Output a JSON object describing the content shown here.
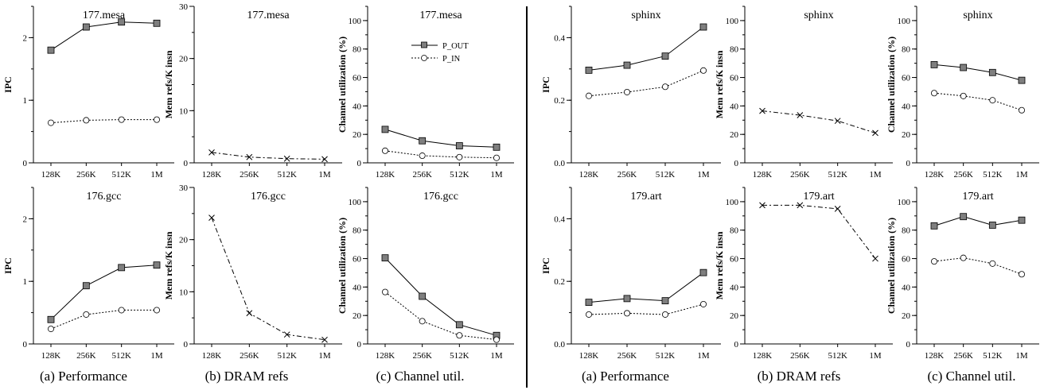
{
  "captions": [
    "(a) Performance",
    "(b) DRAM refs",
    "(c) Channel util.",
    "(a) Performance",
    "(b) DRAM refs",
    "(c) Channel util."
  ],
  "legend": {
    "p_out": "P_OUT",
    "p_in": "P_IN"
  },
  "chart_data": [
    {
      "type": "line",
      "title": "177.mesa",
      "ylabel": "IPC",
      "ylim": [
        0,
        2.5
      ],
      "yticks": [
        "0",
        "1",
        "2"
      ],
      "categories": [
        "128K",
        "256K",
        "512K",
        "1M"
      ],
      "series": [
        {
          "name": "P_OUT",
          "values": [
            1.8,
            2.17,
            2.25,
            2.23
          ]
        },
        {
          "name": "P_IN",
          "values": [
            0.64,
            0.68,
            0.69,
            0.69
          ]
        }
      ]
    },
    {
      "type": "line",
      "title": "177.mesa",
      "ylabel": "Mem refs/K insn",
      "ylim": [
        0,
        30
      ],
      "yticks": [
        "0",
        "10",
        "20",
        "30"
      ],
      "categories": [
        "128K",
        "256K",
        "512K",
        "1M"
      ],
      "series": [
        {
          "values": [
            2.0,
            1.1,
            0.8,
            0.7
          ]
        }
      ]
    },
    {
      "type": "line",
      "title": "177.mesa",
      "ylabel": "Channel utilization (%)",
      "ylim": [
        0,
        110
      ],
      "yticks": [
        "0",
        "20",
        "40",
        "60",
        "80",
        "100"
      ],
      "categories": [
        "128K",
        "256K",
        "512K",
        "1M"
      ],
      "series": [
        {
          "name": "P_OUT",
          "values": [
            23.5,
            15.5,
            12.0,
            11.0
          ]
        },
        {
          "name": "P_IN",
          "values": [
            8.5,
            5.0,
            4.0,
            3.5
          ]
        }
      ]
    },
    {
      "type": "line",
      "title": "sphinx",
      "ylabel": "IPC",
      "ylim": [
        0,
        0.5
      ],
      "yticks": [
        "0.0",
        "0.2",
        "0.4"
      ],
      "categories": [
        "128K",
        "256K",
        "512K",
        "1M"
      ],
      "series": [
        {
          "name": "P_OUT",
          "values": [
            0.296,
            0.312,
            0.341,
            0.434
          ]
        },
        {
          "name": "P_IN",
          "values": [
            0.214,
            0.226,
            0.243,
            0.295
          ]
        }
      ]
    },
    {
      "type": "line",
      "title": "sphinx",
      "ylabel": "Mem refs/K insn",
      "ylim": [
        0,
        110
      ],
      "yticks": [
        "0",
        "20",
        "40",
        "60",
        "80",
        "100"
      ],
      "categories": [
        "128K",
        "256K",
        "512K",
        "1M"
      ],
      "series": [
        {
          "values": [
            36.5,
            33.5,
            29.5,
            21.0
          ]
        }
      ]
    },
    {
      "type": "line",
      "title": "sphinx",
      "ylabel": "Channel utilization (%)",
      "ylim": [
        0,
        110
      ],
      "yticks": [
        "0",
        "20",
        "40",
        "60",
        "80",
        "100"
      ],
      "categories": [
        "128K",
        "256K",
        "512K",
        "1M"
      ],
      "series": [
        {
          "name": "P_OUT",
          "values": [
            69.0,
            67.0,
            63.5,
            58.0
          ]
        },
        {
          "name": "P_IN",
          "values": [
            49.0,
            47.0,
            44.0,
            37.0
          ]
        }
      ]
    },
    {
      "type": "line",
      "title": "176.gcc",
      "ylabel": "IPC",
      "ylim": [
        0,
        2.5
      ],
      "yticks": [
        "0",
        "1",
        "2"
      ],
      "categories": [
        "128K",
        "256K",
        "512K",
        "1M"
      ],
      "series": [
        {
          "name": "P_OUT",
          "values": [
            0.39,
            0.93,
            1.22,
            1.26
          ]
        },
        {
          "name": "P_IN",
          "values": [
            0.24,
            0.47,
            0.54,
            0.54
          ]
        }
      ]
    },
    {
      "type": "line",
      "title": "176.gcc",
      "ylabel": "Mem refs/K insn",
      "ylim": [
        0,
        30
      ],
      "yticks": [
        "0",
        "10",
        "20",
        "30"
      ],
      "categories": [
        "128K",
        "256K",
        "512K",
        "1M"
      ],
      "series": [
        {
          "values": [
            24.2,
            5.9,
            1.8,
            0.8
          ]
        }
      ]
    },
    {
      "type": "line",
      "title": "176.gcc",
      "ylabel": "Channel utilization (%)",
      "ylim": [
        0,
        110
      ],
      "yticks": [
        "0",
        "20",
        "40",
        "60",
        "80",
        "100"
      ],
      "categories": [
        "128K",
        "256K",
        "512K",
        "1M"
      ],
      "series": [
        {
          "name": "P_OUT",
          "values": [
            60.5,
            33.5,
            13.5,
            6.0
          ]
        },
        {
          "name": "P_IN",
          "values": [
            36.5,
            16.0,
            6.0,
            3.0
          ]
        }
      ]
    },
    {
      "type": "line",
      "title": "179.art",
      "ylabel": "IPC",
      "ylim": [
        0,
        0.5
      ],
      "yticks": [
        "0.0",
        "0.2",
        "0.4"
      ],
      "categories": [
        "128K",
        "256K",
        "512K",
        "1M"
      ],
      "series": [
        {
          "name": "P_OUT",
          "values": [
            0.133,
            0.145,
            0.138,
            0.228
          ]
        },
        {
          "name": "P_IN",
          "values": [
            0.094,
            0.098,
            0.094,
            0.127
          ]
        }
      ]
    },
    {
      "type": "line",
      "title": "179.art",
      "ylabel": "Mem refs/K insn",
      "ylim": [
        0,
        110
      ],
      "yticks": [
        "0",
        "20",
        "40",
        "60",
        "80",
        "100"
      ],
      "categories": [
        "128K",
        "256K",
        "512K",
        "1M"
      ],
      "series": [
        {
          "values": [
            97.5,
            97.5,
            95.0,
            60.0
          ]
        }
      ]
    },
    {
      "type": "line",
      "title": "179.art",
      "ylabel": "Channel utilization (%)",
      "ylim": [
        0,
        110
      ],
      "yticks": [
        "0",
        "20",
        "40",
        "60",
        "80",
        "100"
      ],
      "categories": [
        "128K",
        "256K",
        "512K",
        "1M"
      ],
      "series": [
        {
          "name": "P_OUT",
          "values": [
            83.0,
            89.5,
            83.5,
            87.0
          ]
        },
        {
          "name": "P_IN",
          "values": [
            58.0,
            60.5,
            56.5,
            49.0
          ]
        }
      ]
    }
  ]
}
